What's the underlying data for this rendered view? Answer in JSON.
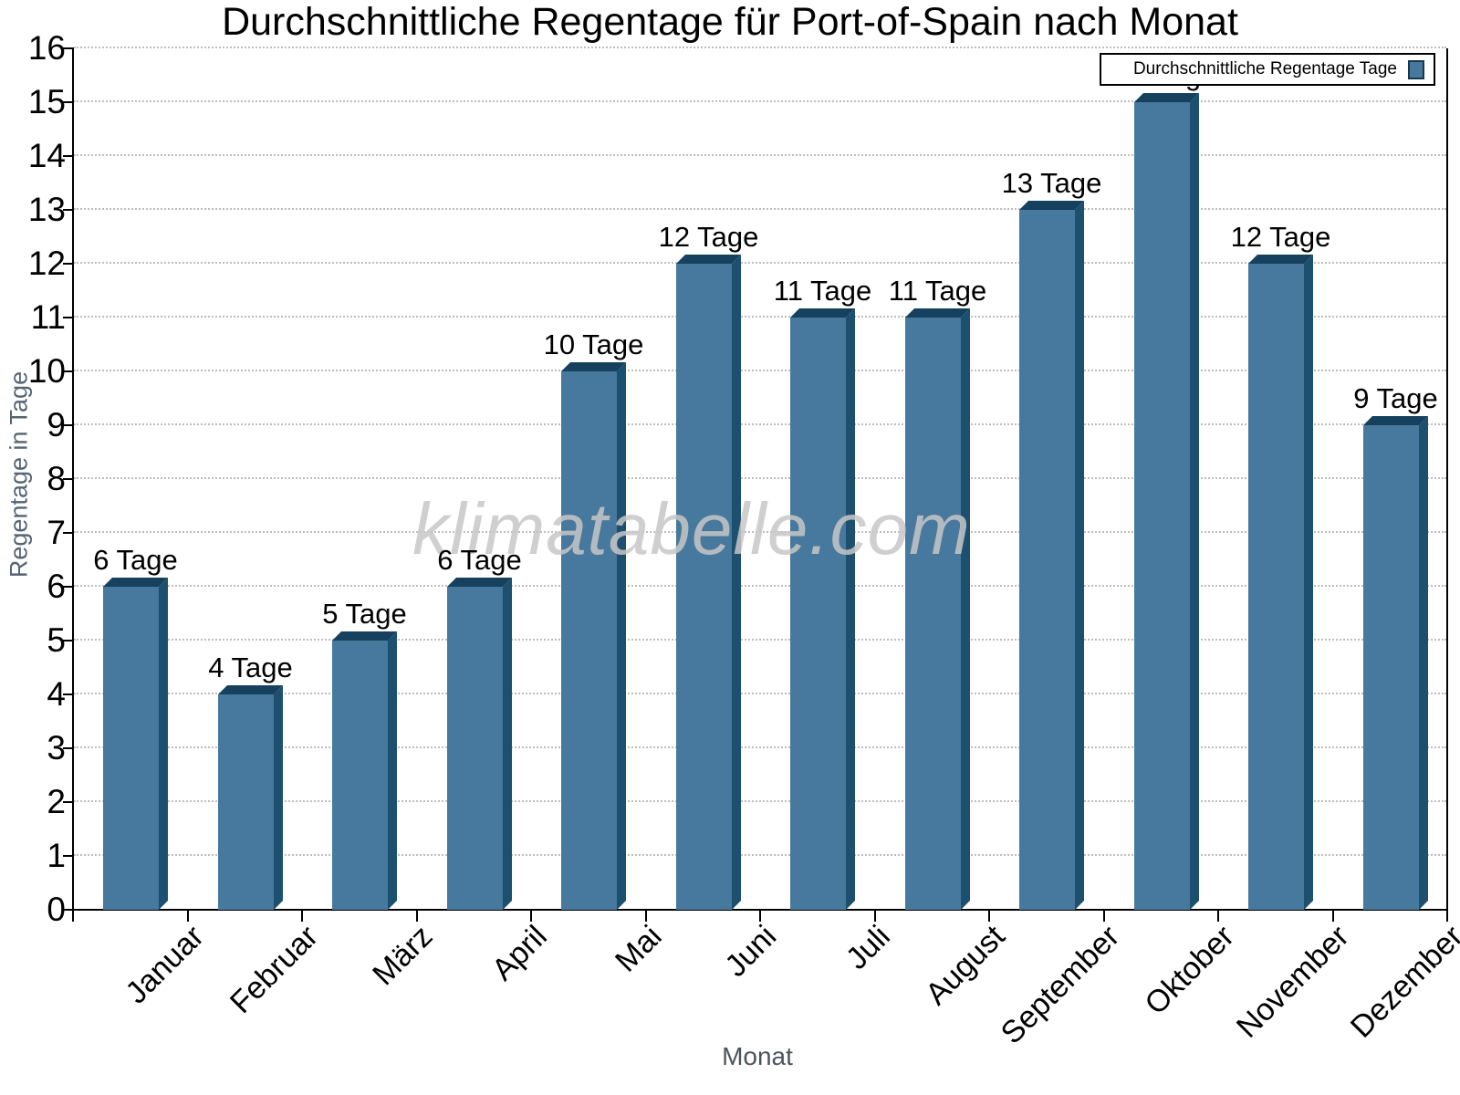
{
  "title": "Durchschnittliche Regentage für Port-of-Spain nach Monat",
  "watermark": "klimatabelle.com",
  "legend": {
    "label": "Durchschnittliche Regentage Tage"
  },
  "axes": {
    "y_title": "Regentage in Tage",
    "x_title": "Monat"
  },
  "chart_data": {
    "type": "bar",
    "title": "Durchschnittliche Regentage für Port-of-Spain nach Monat",
    "categories": [
      "Januar",
      "Februar",
      "März",
      "April",
      "Mai",
      "Juni",
      "Juli",
      "August",
      "September",
      "Oktober",
      "November",
      "Dezember"
    ],
    "values": [
      6,
      4,
      5,
      6,
      10,
      12,
      11,
      11,
      13,
      15,
      12,
      9
    ],
    "value_labels": [
      "6 Tage",
      "4 Tage",
      "5 Tage",
      "6 Tage",
      "10 Tage",
      "12 Tage",
      "11 Tage",
      "11 Tage",
      "13 Tage",
      "15 Tage",
      "12 Tage",
      "9 Tage"
    ],
    "xlabel": "Monat",
    "ylabel": "Regentage in Tage",
    "ylim": [
      0,
      16
    ],
    "ytick_step": 1,
    "grid": "horizontal-dotted",
    "bar_style": "3d",
    "legend_entry": "Durchschnittliche Regentage Tage",
    "legend_position": "top-right",
    "colors": {
      "bar_face": "#47789D",
      "bar_top": "#15405E",
      "bar_side": "#1D4F6F",
      "grid": "#bdbdbd",
      "axis": "#000000",
      "watermark": "#c7c7c7"
    }
  }
}
